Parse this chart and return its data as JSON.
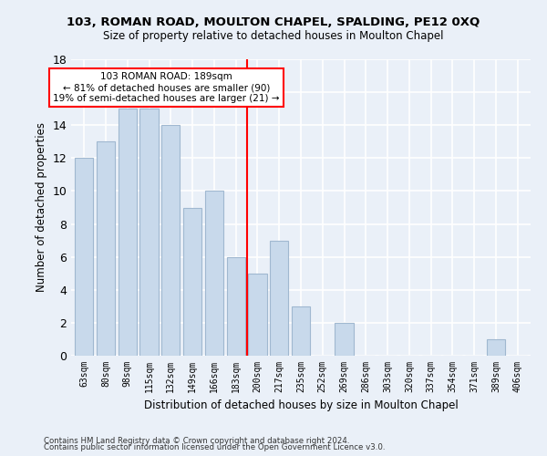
{
  "title1": "103, ROMAN ROAD, MOULTON CHAPEL, SPALDING, PE12 0XQ",
  "title2": "Size of property relative to detached houses in Moulton Chapel",
  "xlabel": "Distribution of detached houses by size in Moulton Chapel",
  "ylabel": "Number of detached properties",
  "footnote1": "Contains HM Land Registry data © Crown copyright and database right 2024.",
  "footnote2": "Contains public sector information licensed under the Open Government Licence v3.0.",
  "bar_labels": [
    "63sqm",
    "80sqm",
    "98sqm",
    "115sqm",
    "132sqm",
    "149sqm",
    "166sqm",
    "183sqm",
    "200sqm",
    "217sqm",
    "235sqm",
    "252sqm",
    "269sqm",
    "286sqm",
    "303sqm",
    "320sqm",
    "337sqm",
    "354sqm",
    "371sqm",
    "389sqm",
    "406sqm"
  ],
  "bar_values": [
    12,
    13,
    15,
    15,
    14,
    9,
    10,
    6,
    5,
    7,
    3,
    0,
    2,
    0,
    0,
    0,
    0,
    0,
    0,
    1,
    0
  ],
  "bar_color": "#c8d9eb",
  "bar_edgecolor": "#a0b8d0",
  "vline_color": "red",
  "annotation_text": "103 ROMAN ROAD: 189sqm\n← 81% of detached houses are smaller (90)\n19% of semi-detached houses are larger (21) →",
  "annotation_box_color": "white",
  "annotation_box_edgecolor": "red",
  "ylim": [
    0,
    18
  ],
  "yticks": [
    0,
    2,
    4,
    6,
    8,
    10,
    12,
    14,
    16,
    18
  ],
  "bg_color": "#eaf0f8",
  "plot_bg_color": "#eaf0f8",
  "grid_color": "#ffffff"
}
